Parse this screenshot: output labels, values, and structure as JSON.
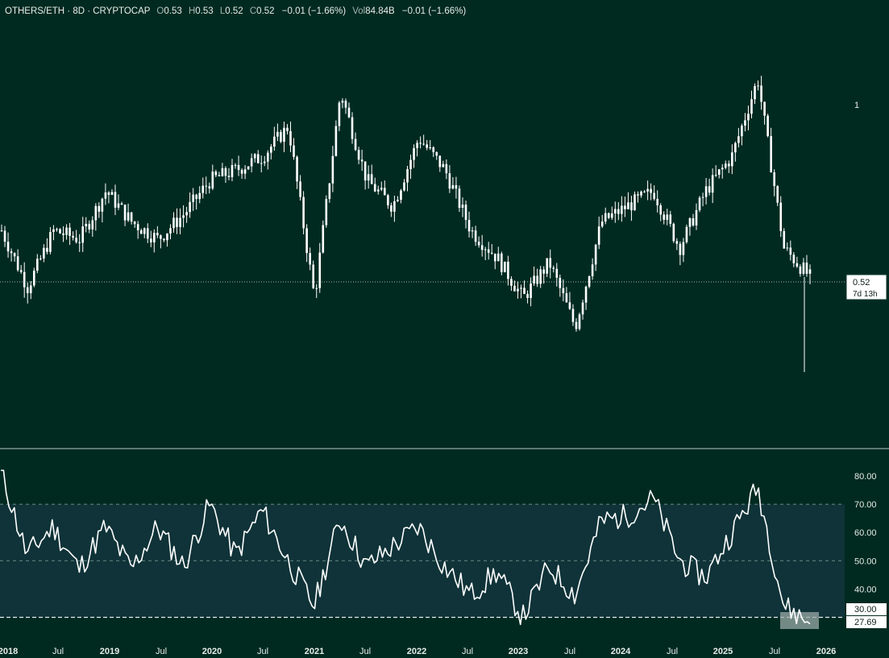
{
  "header": {
    "symbol": "OTHERS/ETH · 8D · CRYPTOCAP",
    "o_label": "O",
    "o_value": "0.53",
    "h_label": "H",
    "h_value": "0.53",
    "l_label": "L",
    "l_value": "0.52",
    "c_label": "C",
    "c_value": "0.52",
    "change": "−0.01 (−1.66%)",
    "vol_label": "Vol",
    "vol_value": "84.84B",
    "vol_change": "−0.01 (−1.66%)"
  },
  "price_axis": {
    "tick_1": "1",
    "last_price": "0.52",
    "countdown": "7d 13h"
  },
  "rsi_axis": {
    "ticks": [
      "80.00",
      "70.00",
      "60.00",
      "50.00",
      "40.00"
    ],
    "level_30": "30.00",
    "last_value": "27.69"
  },
  "time_axis": {
    "labels": [
      "2018",
      "Jul",
      "2019",
      "Jul",
      "2020",
      "Jul",
      "2021",
      "Jul",
      "2022",
      "Jul",
      "2023",
      "Jul",
      "2024",
      "Jul",
      "2025",
      "Jul",
      "2026"
    ]
  },
  "colors": {
    "background": "#002a20",
    "rsi_band": "#0f3338",
    "line": "#ffffff",
    "text": "#e6ede9"
  },
  "chart_data": [
    {
      "type": "candlestick",
      "title": "OTHERS/ETH · 8D · CRYPTOCAP",
      "scale": "log",
      "x": [
        "2018-01",
        "2018-04",
        "2018-07",
        "2018-10",
        "2019-01",
        "2019-04",
        "2019-07",
        "2019-10",
        "2020-01",
        "2020-04",
        "2020-07",
        "2020-10",
        "2021-01",
        "2021-04",
        "2021-07",
        "2021-10",
        "2022-01",
        "2022-04",
        "2022-07",
        "2022-10",
        "2023-01",
        "2023-04",
        "2023-07",
        "2023-10",
        "2024-01",
        "2024-04",
        "2024-07",
        "2024-10",
        "2025-01",
        "2025-04",
        "2025-07",
        "2025-09"
      ],
      "close": [
        0.62,
        0.5,
        0.62,
        0.6,
        0.72,
        0.64,
        0.6,
        0.66,
        0.75,
        0.78,
        0.82,
        0.92,
        0.48,
        1.05,
        0.75,
        0.68,
        0.88,
        0.78,
        0.62,
        0.56,
        0.48,
        0.55,
        0.43,
        0.64,
        0.68,
        0.72,
        0.58,
        0.72,
        0.82,
        1.1,
        0.58,
        0.52
      ],
      "last_price": 0.52,
      "yticks": [
        1
      ]
    },
    {
      "type": "line",
      "title": "RSI",
      "x": [
        "2018-01",
        "2018-04",
        "2018-07",
        "2018-10",
        "2019-01",
        "2019-04",
        "2019-07",
        "2019-10",
        "2020-01",
        "2020-04",
        "2020-07",
        "2020-10",
        "2021-01",
        "2021-04",
        "2021-07",
        "2021-10",
        "2022-01",
        "2022-04",
        "2022-07",
        "2022-10",
        "2023-01",
        "2023-04",
        "2023-07",
        "2023-10",
        "2024-01",
        "2024-04",
        "2024-07",
        "2024-10",
        "2025-01",
        "2025-04",
        "2025-07",
        "2025-09"
      ],
      "values": [
        82,
        52,
        62,
        47,
        62,
        47,
        62,
        48,
        70,
        52,
        68,
        50,
        34,
        65,
        48,
        55,
        62,
        48,
        38,
        46,
        30,
        48,
        38,
        64,
        66,
        72,
        50,
        44,
        60,
        76,
        34,
        28
      ],
      "ylim": [
        27,
        82
      ],
      "levels": [
        70,
        50,
        30
      ],
      "last_value": 27.69,
      "yticks": [
        80,
        70,
        60,
        50,
        40
      ]
    }
  ]
}
